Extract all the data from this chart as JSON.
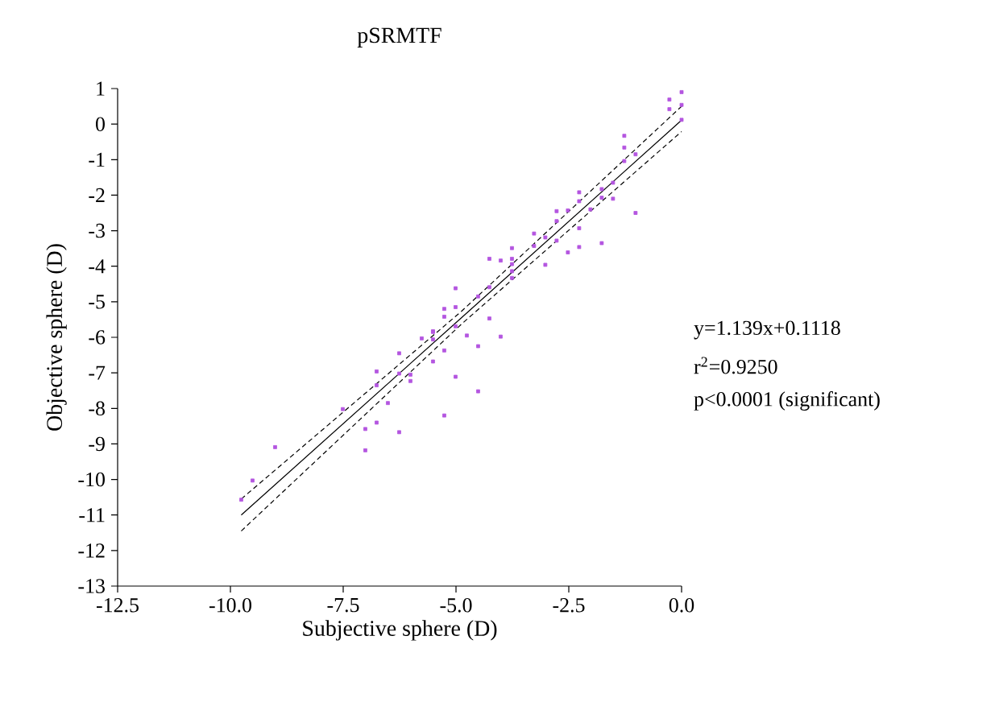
{
  "chart_data": {
    "type": "scatter",
    "title": "pSRMTF",
    "xlabel": "Subjective sphere (D)",
    "ylabel": "Objective sphere (D)",
    "xlim": [
      -12.5,
      0
    ],
    "ylim": [
      -13,
      1
    ],
    "xticks": [
      -12.5,
      {
        "value": -10,
        "label": "-10.0"
      },
      -7.5,
      {
        "value": -5,
        "label": "-5.0"
      },
      -2.5,
      {
        "value": 0,
        "label": "0.0"
      }
    ],
    "yticks": [
      1,
      0,
      -1,
      -2,
      -3,
      -4,
      -5,
      -6,
      -7,
      -8,
      -9,
      -10,
      -11,
      -12,
      -13
    ],
    "marker": "square",
    "annotations": [
      "y=1.139x+0.1118",
      "r$^{2}$=0.9250",
      "p<0.0001 (significant)"
    ],
    "series": [
      {
        "color": "#b455e0",
        "x": [
          0,
          -0.27,
          0,
          -0.27,
          0,
          -1.27,
          -1.27,
          -1.27,
          -1.02,
          -1.02,
          -1.52,
          -1.52,
          -1.77,
          -1.77,
          -2.02,
          -1.77,
          -2.27,
          -2.27,
          -2.27,
          -2.27,
          -2.52,
          -2.77,
          -2.77,
          -2.52,
          -2.77,
          -3.02,
          -3.27,
          -3.27,
          -3.02,
          -3.76,
          -3.76,
          -3.76,
          -3.76,
          -3.76,
          -4.01,
          -4.26,
          -4.26,
          -4.26,
          -4.01,
          -4.51,
          -4.51,
          -5.01,
          -5.01,
          -5.26,
          -5.26,
          -4.76,
          -5.01,
          -5.51,
          -5.76,
          -5.26,
          -6.26,
          -5.51,
          -5.51,
          -6.76,
          -6.26,
          -6.01,
          -6.01,
          -5.51,
          -5.01,
          -4.51,
          -6.76,
          -6.51,
          -7.51,
          -6.76,
          -7.01,
          -5.26,
          -6.26,
          -7.01,
          -9.01,
          -9.51,
          -9.76
        ],
        "values": [
          0.9,
          0.69,
          0.54,
          0.42,
          0.12,
          -0.33,
          -0.66,
          -1.04,
          -0.85,
          -2.5,
          -1.65,
          -2.1,
          -1.83,
          -2.07,
          -2.4,
          -3.35,
          -1.92,
          -2.17,
          -2.93,
          -3.46,
          -2.43,
          -2.45,
          -2.73,
          -3.61,
          -3.28,
          -3.19,
          -3.08,
          -3.43,
          -3.96,
          -3.49,
          -3.79,
          -3.94,
          -4.14,
          -4.33,
          -3.84,
          -3.79,
          -4.59,
          -5.47,
          -5.98,
          -4.85,
          -6.25,
          -4.62,
          -5.15,
          -5.2,
          -5.42,
          -5.95,
          -5.69,
          -5.83,
          -6.03,
          -6.37,
          -6.45,
          -5.85,
          -6.06,
          -6.96,
          -7.02,
          -7.05,
          -7.23,
          -6.68,
          -7.11,
          -7.52,
          -7.35,
          -7.85,
          -8.02,
          -8.4,
          -8.58,
          -8.2,
          -8.67,
          -9.18,
          -9.09,
          -10.03,
          -10.57
        ]
      },
      {
        "type": "line",
        "color": "#000000",
        "marker": "none",
        "x": [
          -9.76,
          -4.88,
          0
        ],
        "values": [
          -11.0,
          -5.45,
          0.11
        ]
      },
      {
        "type": "line",
        "color": "#000000",
        "marker": "none",
        "line_style": "dashed",
        "x": [
          -9.76,
          -4.88,
          0
        ],
        "values": [
          -10.55,
          -5.27,
          0.5
        ]
      },
      {
        "type": "line",
        "color": "#000000",
        "marker": "none",
        "line_style": "dashed",
        "x": [
          -9.76,
          -4.88,
          0
        ],
        "values": [
          -11.45,
          -5.63,
          -0.21
        ]
      }
    ]
  }
}
